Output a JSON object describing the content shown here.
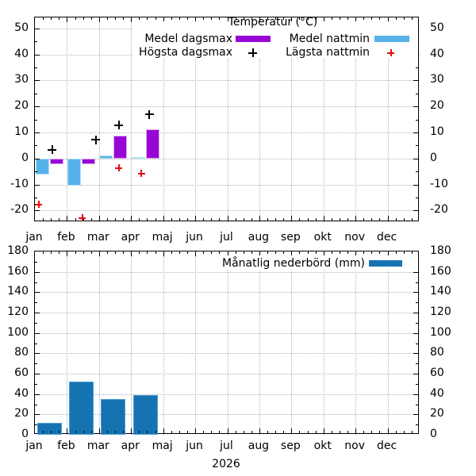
{
  "year": "2026",
  "colors": {
    "medel_dagsmax": "#9806d6",
    "medel_dagsmax_border": "#dcaaee",
    "medel_nattmin": "#56b1e8",
    "medel_nattmin_border": "#b0e0f8",
    "hogsta_dagsmax": "#000000",
    "lagsta_nattmin": "#e01010",
    "nederbord": "#1673b2",
    "nederbord_border": "#4d9fd4",
    "grid": "#b3b3b3"
  },
  "chart_data": [
    {
      "type": "bar",
      "title": "Temperatur (°C)",
      "categories": [
        "jan",
        "feb",
        "mar",
        "apr",
        "maj",
        "jun",
        "jul",
        "aug",
        "sep",
        "okt",
        "nov",
        "dec"
      ],
      "ylim": [
        -24.5,
        54.3
      ],
      "yticks": [
        -20,
        -10,
        0,
        10,
        20,
        30,
        40,
        50
      ],
      "grid": true,
      "legend_position": "top-inside",
      "series": [
        {
          "name": "Medel dagsmax",
          "type": "bar",
          "slot": 1,
          "color": "#9806d6",
          "border": "#dcaaee",
          "values": [
            -2.3,
            -2.3,
            8.9,
            11.1,
            null,
            null,
            null,
            null,
            null,
            null,
            null,
            null
          ]
        },
        {
          "name": "Medel nattmin",
          "type": "bar",
          "slot": 0,
          "color": "#56b1e8",
          "border": "#b0e0f8",
          "values": [
            -6.3,
            -10.3,
            1.3,
            0.4,
            null,
            null,
            null,
            null,
            null,
            null,
            null,
            null
          ]
        },
        {
          "name": "Högsta dagsmax",
          "type": "point",
          "marker": "plus",
          "color": "#000000",
          "values": [
            3.4,
            7.2,
            12.8,
            16.9,
            null,
            null,
            null,
            null,
            null,
            null,
            null,
            null
          ],
          "x_frac": [
            0.54,
            0.9,
            0.62,
            0.57,
            null,
            null,
            null,
            null,
            null,
            null,
            null,
            null
          ]
        },
        {
          "name": "Lägsta nattmin",
          "type": "point",
          "marker": "plus",
          "color": "#e01010",
          "values": [
            -17.7,
            -22.8,
            -3.6,
            -5.8,
            null,
            null,
            null,
            null,
            null,
            null,
            null,
            null
          ],
          "x_frac": [
            0.12,
            0.48,
            0.62,
            0.32,
            null,
            null,
            null,
            null,
            null,
            null,
            null,
            null
          ]
        }
      ]
    },
    {
      "type": "bar",
      "title": "Månatlig nederbörd (mm)",
      "categories": [
        "jan",
        "feb",
        "mar",
        "apr",
        "maj",
        "jun",
        "jul",
        "aug",
        "sep",
        "okt",
        "nov",
        "dec"
      ],
      "ylim": [
        0,
        180
      ],
      "yticks": [
        0,
        20,
        40,
        60,
        80,
        100,
        120,
        140,
        160,
        180
      ],
      "grid": true,
      "legend_position": "top-right-inside",
      "xlabel": "2026",
      "series": [
        {
          "name": "Månatlig nederbörd (mm)",
          "type": "bar",
          "slot": 0,
          "color": "#1673b2",
          "border": "#4d9fd4",
          "values": [
            12,
            52,
            35,
            39,
            null,
            null,
            null,
            null,
            null,
            null,
            null,
            null
          ]
        }
      ]
    }
  ]
}
